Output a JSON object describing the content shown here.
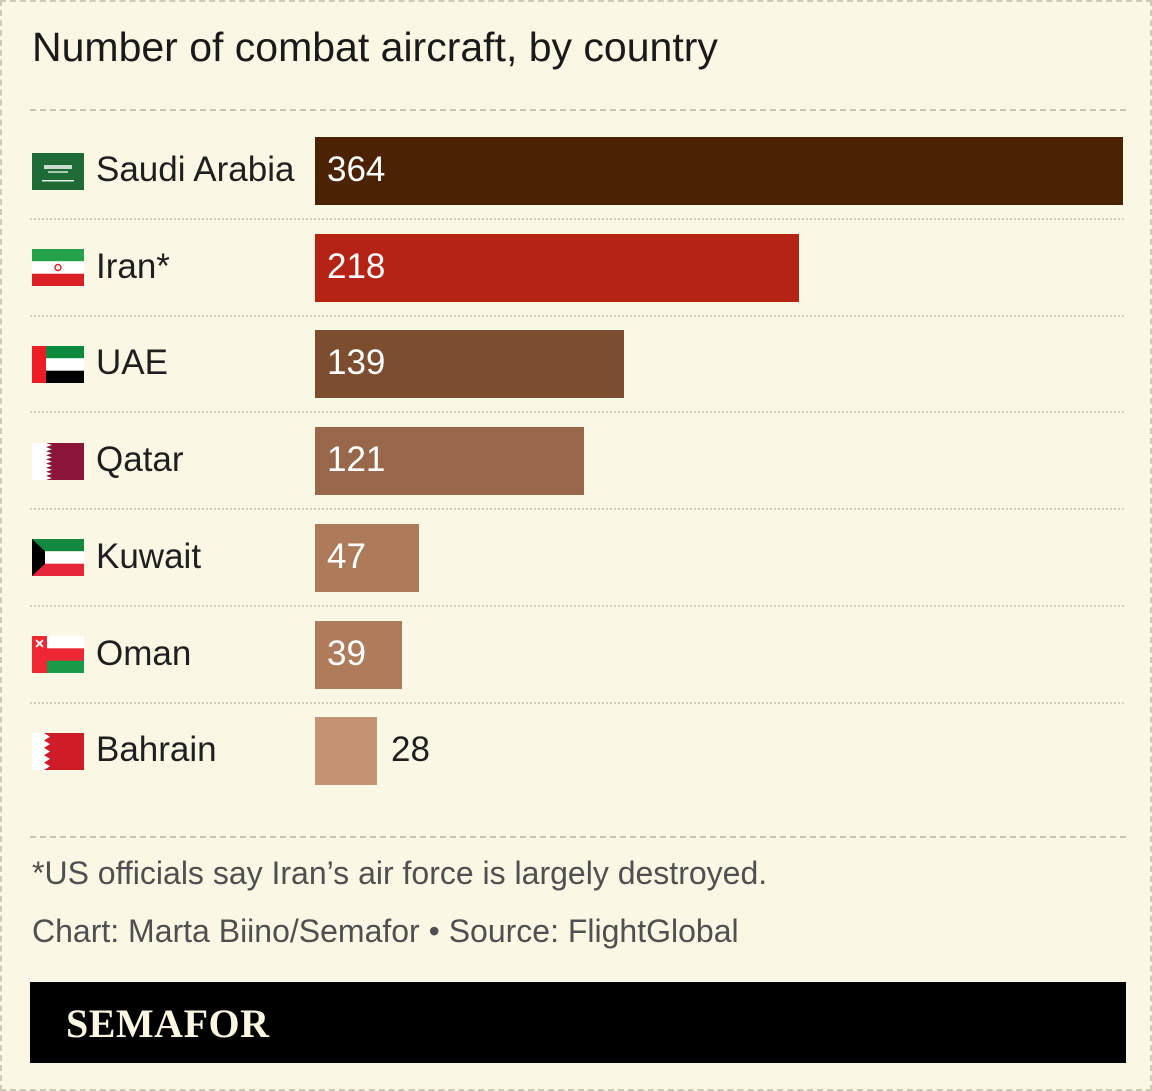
{
  "chart_data": {
    "type": "bar",
    "orientation": "horizontal",
    "title": "Number of combat aircraft, by country",
    "categories": [
      "Saudi Arabia",
      "Iran*",
      "UAE",
      "Qatar",
      "Kuwait",
      "Oman",
      "Bahrain"
    ],
    "values": [
      364,
      218,
      139,
      121,
      47,
      39,
      28
    ],
    "value_labels": [
      "364",
      "218",
      "139",
      "121",
      "47",
      "39",
      "28"
    ],
    "bar_colors": [
      "#4b2303",
      "#b52315",
      "#7c4e2f",
      "#99674a",
      "#ad7b5a",
      "#ae7b5b",
      "#c49373"
    ],
    "flags": [
      "saudi-arabia-flag",
      "iran-flag",
      "uae-flag",
      "qatar-flag",
      "kuwait-flag",
      "oman-flag",
      "bahrain-flag"
    ],
    "xlim": [
      0,
      364
    ],
    "grid": false,
    "legend": "none"
  },
  "footnote": "*US officials say Iran’s air force is largely destroyed.",
  "credit": "Chart: Marta Biino/Semafor • Source: FlightGlobal",
  "brand": "SEMAFOR",
  "colors": {
    "background": "#faf7e4",
    "brand_bar": "#000000",
    "brand_text": "#fbf7e2"
  }
}
